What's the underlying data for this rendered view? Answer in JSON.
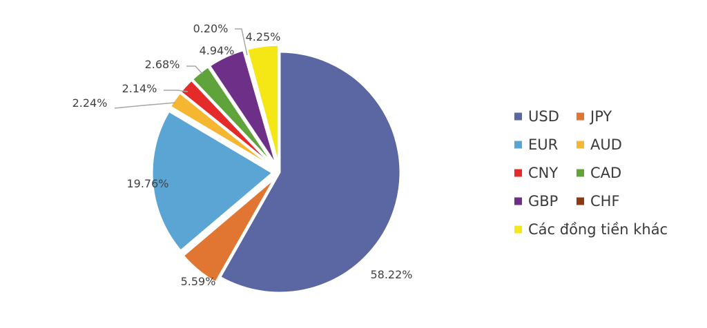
{
  "chart_data": {
    "type": "pie",
    "categories": [
      "USD",
      "JPY",
      "EUR",
      "AUD",
      "CNY",
      "CAD",
      "GBP",
      "CHF",
      "Các đồng tiền khác"
    ],
    "values": [
      58.22,
      5.59,
      19.76,
      2.24,
      2.14,
      2.68,
      4.94,
      0.2,
      4.25
    ],
    "labels": [
      "58.22%",
      "5.59%",
      "19.76%",
      "2.24%",
      "2.14%",
      "2.68%",
      "4.94%",
      "0.20%",
      "4.25%"
    ],
    "colors": [
      "#5B67A3",
      "#E07632",
      "#5BA5D5",
      "#F5B731",
      "#E52A2A",
      "#5FA33B",
      "#6E2F88",
      "#8B3A13",
      "#F5E716"
    ],
    "legend_position": "right",
    "start_angle": "12 o'clock",
    "direction": "clockwise"
  }
}
